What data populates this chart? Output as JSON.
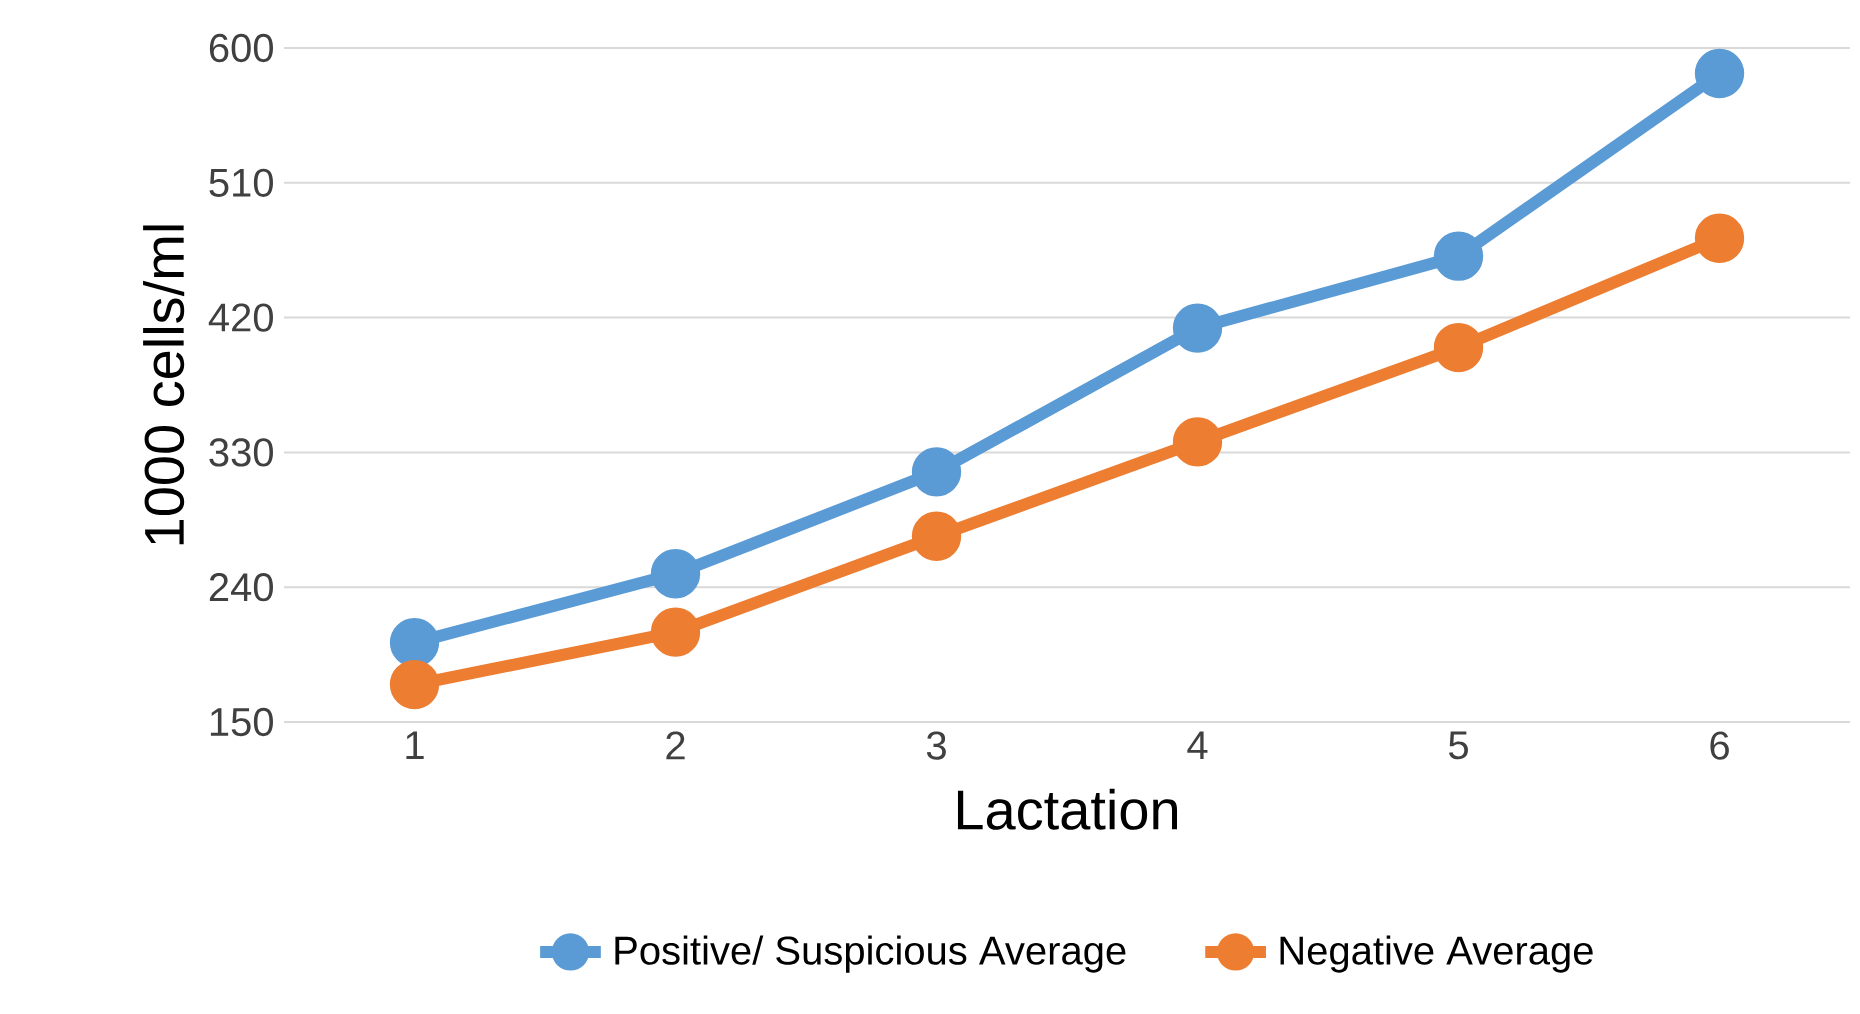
{
  "chart_data": {
    "type": "line",
    "xlabel": "Lactation",
    "ylabel": "1000 cells/ml",
    "categories": [
      "1",
      "2",
      "3",
      "4",
      "5",
      "6"
    ],
    "series": [
      {
        "name": "Positive/ Suspicious Average",
        "color": "#5b9bd5",
        "values": [
          203,
          249,
          317,
          413,
          461,
          583
        ]
      },
      {
        "name": "Negative Average",
        "color": "#ed7d31",
        "values": [
          175,
          210,
          274,
          337,
          400,
          473
        ]
      }
    ],
    "ylim": [
      150,
      600
    ],
    "yticks": [
      150,
      240,
      330,
      420,
      510,
      600
    ],
    "grid": "y",
    "legend": "bottom",
    "marker": "circle",
    "line_style": "solid"
  }
}
